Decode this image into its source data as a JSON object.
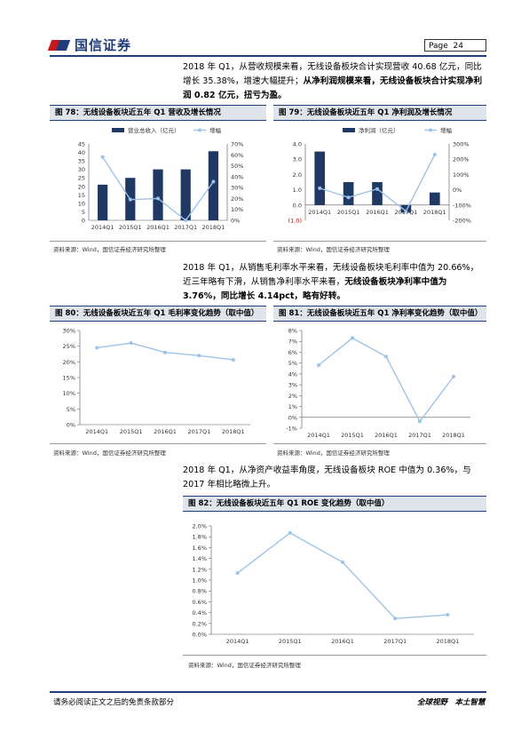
{
  "header": {
    "logo_text": "国信证券",
    "page_label": "Page",
    "page_number": "24"
  },
  "para1": {
    "normal": "2018 年 Q1，从营收规模来看，无线设备板块合计实现营收 40.68 亿元，同比增长 35.38%，增速大幅提升；",
    "bold": "从净利润规模来看，无线设备板块合计实现净利润 0.82 亿元，扭亏为盈。"
  },
  "para2": {
    "normal": "2018 年 Q1，从销售毛利率水平来看，无线设备板块毛利率中值为 20.66%，近三年略有下滑，从销售净利率水平来看，",
    "bold": "无线设备板块净利率中值为 3.76%，同比增长 4.14pct，略有好转。"
  },
  "para3": {
    "normal": "2018 年 Q1，从净资产收益率角度，无线设备板块 ROE 中值为 0.36%，与 2017 年相比略微上升。"
  },
  "source_text": "资料来源：Wind，国信证券经济研究所整理",
  "figures": {
    "f78": {
      "title": "图 78：无线设备板块近五年 Q1 营收及增长情况"
    },
    "f79": {
      "title": "图 79：无线设备板块近五年 Q1 净利润及增长情况"
    },
    "f80": {
      "title": "图 80：无线设备板块近五年 Q1 毛利率变化趋势（取中值）"
    },
    "f81": {
      "title": "图 81：无线设备板块近五年 Q1 净利率变化趋势（取中值）"
    },
    "f82": {
      "title": "图 82：无线设备板块近五年 Q1 ROE 变化趋势（取中值）"
    }
  },
  "chart_data": [
    {
      "id": "f78",
      "type": "bar",
      "categories": [
        "2014Q1",
        "2015Q1",
        "2016Q1",
        "2017Q1",
        "2018Q1"
      ],
      "series": [
        {
          "name": "营业总收入（亿元）",
          "kind": "bar",
          "axis": "left",
          "values": [
            21,
            25,
            30,
            30,
            40.68
          ]
        },
        {
          "name": "增幅",
          "kind": "line",
          "axis": "right",
          "values": [
            58,
            19,
            20,
            0,
            35.38
          ]
        }
      ],
      "y_left": {
        "ticks": [
          "0",
          "5",
          "10",
          "15",
          "20",
          "25",
          "30",
          "35",
          "40",
          "45"
        ],
        "ylim": [
          0,
          45
        ]
      },
      "y_right": {
        "ticks": [
          "0%",
          "10%",
          "20%",
          "30%",
          "40%",
          "50%",
          "60%",
          "70%"
        ],
        "ylim": [
          0,
          70
        ]
      },
      "colors": {
        "bar": "#1f3864",
        "line": "#9dc3e6"
      },
      "legend": "top"
    },
    {
      "id": "f79",
      "type": "bar",
      "categories": [
        "2014Q1",
        "2015Q1",
        "2016Q1",
        "2017Q1",
        "2018Q1"
      ],
      "series": [
        {
          "name": "净利润（亿元）",
          "kind": "bar",
          "axis": "left",
          "values": [
            3.5,
            1.5,
            1.5,
            -0.5,
            0.82
          ]
        },
        {
          "name": "增幅",
          "kind": "line",
          "axis": "right",
          "values": [
            10,
            -50,
            5,
            -140,
            230
          ]
        }
      ],
      "y_left": {
        "ticks": [
          "(1.0)",
          "0.0",
          "1.0",
          "2.0",
          "3.0",
          "4.0"
        ],
        "ylim": [
          -1,
          4
        ]
      },
      "y_right": {
        "ticks": [
          "-200%",
          "-100%",
          "0%",
          "100%",
          "200%",
          "300%"
        ],
        "ylim": [
          -200,
          300
        ]
      },
      "colors": {
        "bar": "#1f3864",
        "line": "#9dc3e6"
      },
      "legend": "top"
    },
    {
      "id": "f80",
      "type": "line",
      "categories": [
        "2014Q1",
        "2015Q1",
        "2016Q1",
        "2017Q1",
        "2018Q1"
      ],
      "series": [
        {
          "values": [
            24.5,
            26,
            23,
            22,
            20.66
          ]
        }
      ],
      "y_ticks": [
        "0%",
        "5%",
        "10%",
        "15%",
        "20%",
        "25%",
        "30%"
      ],
      "ylim": [
        0,
        30
      ],
      "colors": {
        "line": "#9dc3e6"
      }
    },
    {
      "id": "f81",
      "type": "line",
      "categories": [
        "2014Q1",
        "2015Q1",
        "2016Q1",
        "2017Q1",
        "2018Q1"
      ],
      "series": [
        {
          "values": [
            4.8,
            7.3,
            5.6,
            -0.38,
            3.76
          ]
        }
      ],
      "y_ticks": [
        "-1%",
        "0%",
        "1%",
        "2%",
        "3%",
        "4%",
        "5%",
        "6%",
        "7%",
        "8%"
      ],
      "ylim": [
        -1,
        8
      ],
      "colors": {
        "line": "#9dc3e6"
      }
    },
    {
      "id": "f82",
      "type": "line",
      "categories": [
        "2014Q1",
        "2015Q1",
        "2016Q1",
        "2017Q1",
        "2018Q1"
      ],
      "series": [
        {
          "values": [
            1.13,
            1.87,
            1.33,
            0.29,
            0.36
          ]
        }
      ],
      "y_ticks": [
        "0.0%",
        "0.2%",
        "0.4%",
        "0.6%",
        "0.8%",
        "1.0%",
        "1.2%",
        "1.4%",
        "1.6%",
        "1.8%",
        "2.0%"
      ],
      "ylim": [
        0,
        2
      ],
      "colors": {
        "line": "#9dc3e6"
      }
    }
  ],
  "footer": {
    "disclaimer": "请务必阅读正文之后的免责条款部分",
    "slogan": "全球视野　本土智慧"
  }
}
